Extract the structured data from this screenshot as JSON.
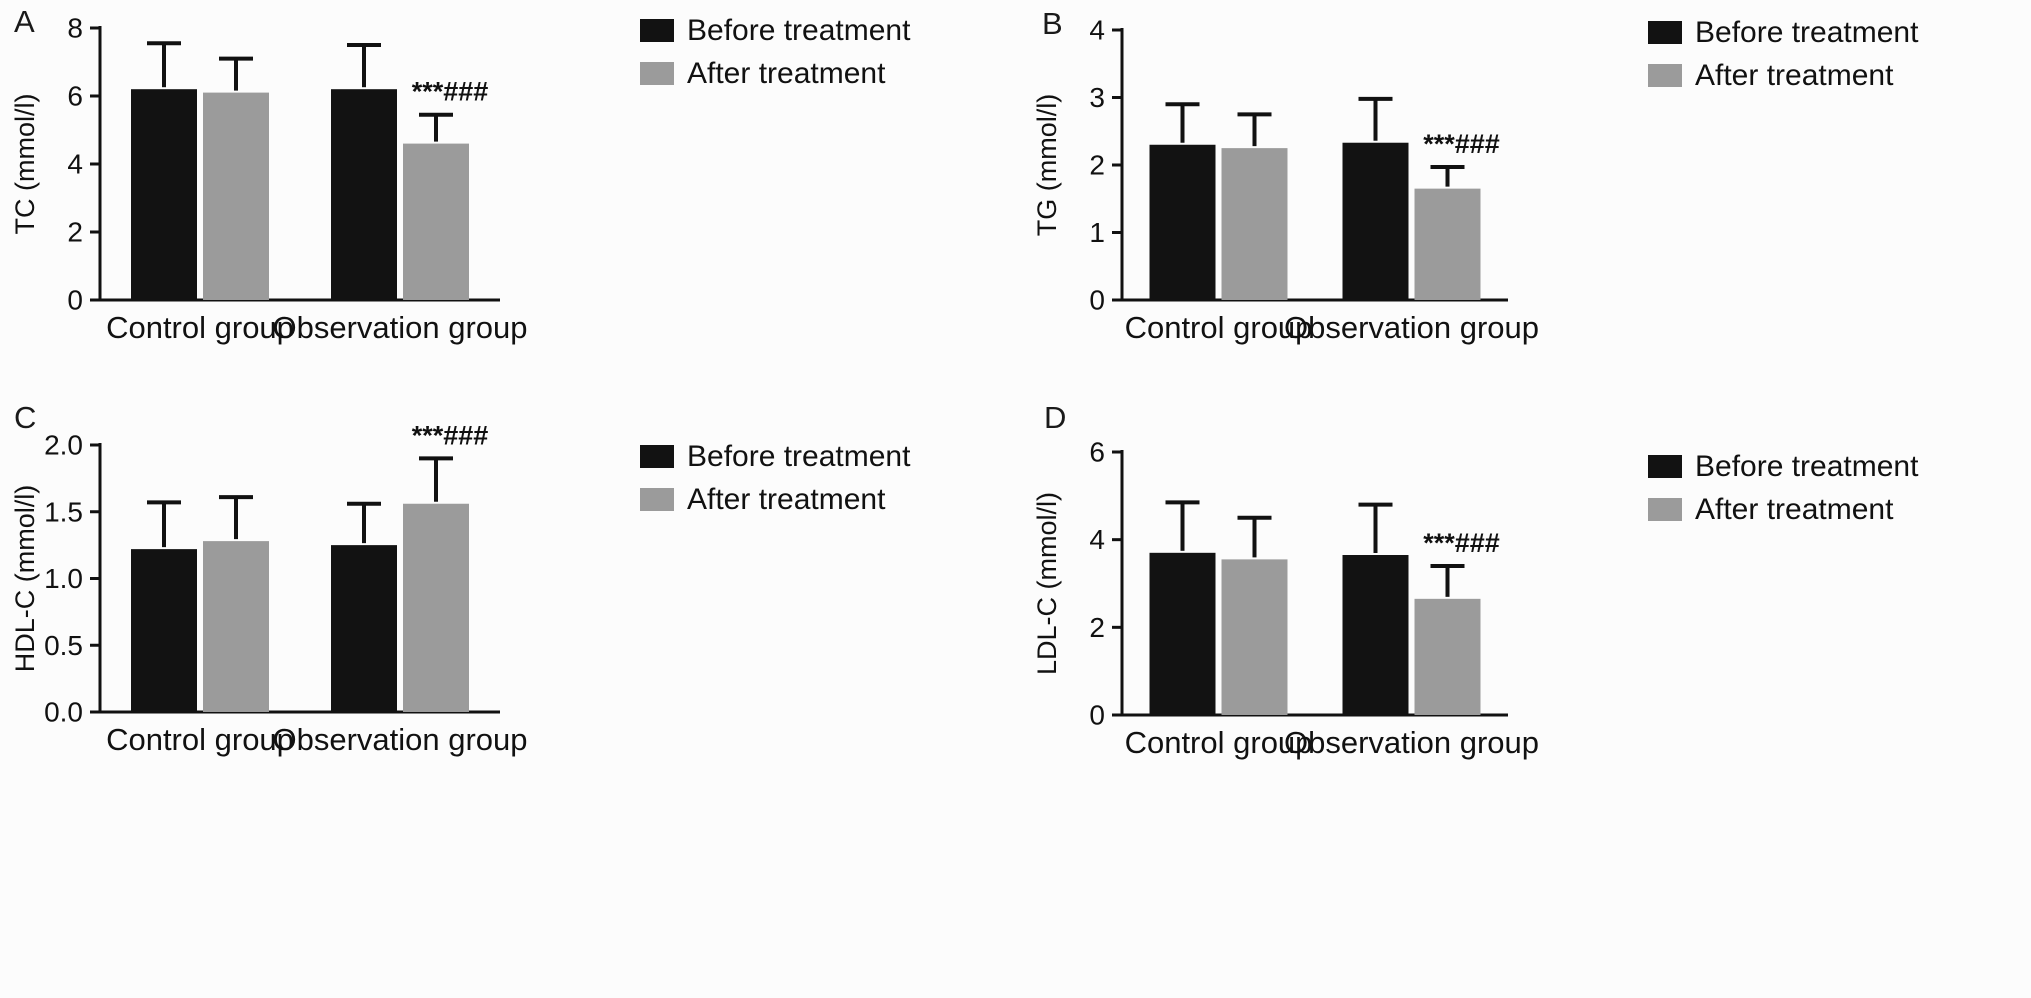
{
  "figure": {
    "background": "#fcfcfc"
  },
  "colors": {
    "before_series": "#121212",
    "after_series": "#9b9b9b",
    "axis": "#111111"
  },
  "chart_data": [
    {
      "type": "bar",
      "panel": "A",
      "ylabel": "TC (mmol/l)",
      "ylim": [
        0,
        8
      ],
      "ytick_values": [
        0,
        2,
        4,
        6,
        8
      ],
      "ytick_labels": [
        "0",
        "2",
        "4",
        "6",
        "8"
      ],
      "categories": [
        "Control group",
        "Observation group"
      ],
      "series": [
        {
          "name": "Before treatment",
          "color": "#121212",
          "values": [
            6.2,
            6.2
          ],
          "errors": [
            1.35,
            1.3
          ]
        },
        {
          "name": "After treatment",
          "color": "#9b9b9b",
          "values": [
            6.1,
            4.6
          ],
          "errors": [
            1.0,
            0.85
          ]
        }
      ],
      "annotation": {
        "text": "***###",
        "group": 1,
        "series": 1
      },
      "legend_position": "top-right",
      "grid": false
    },
    {
      "type": "bar",
      "panel": "B",
      "ylabel": "TG (mmol/l)",
      "ylim": [
        0,
        4
      ],
      "ytick_values": [
        0,
        1,
        2,
        3,
        4
      ],
      "ytick_labels": [
        "0",
        "1",
        "2",
        "3",
        "4"
      ],
      "categories": [
        "Control group",
        "Observation group"
      ],
      "series": [
        {
          "name": "Before treatment",
          "color": "#121212",
          "values": [
            2.3,
            2.33
          ],
          "errors": [
            0.6,
            0.65
          ]
        },
        {
          "name": "After treatment",
          "color": "#9b9b9b",
          "values": [
            2.25,
            1.65
          ],
          "errors": [
            0.5,
            0.32
          ]
        }
      ],
      "annotation": {
        "text": "***###",
        "group": 1,
        "series": 1
      },
      "legend_position": "top-right",
      "grid": false
    },
    {
      "type": "bar",
      "panel": "C",
      "ylabel": "HDL-C (mmol/l)",
      "ylim": [
        0,
        2
      ],
      "ytick_values": [
        0,
        0.5,
        1,
        1.5,
        2
      ],
      "ytick_labels": [
        "0.0",
        "0.5",
        "1.0",
        "1.5",
        "2.0"
      ],
      "categories": [
        "Control group",
        "Observation group"
      ],
      "series": [
        {
          "name": "Before treatment",
          "color": "#121212",
          "values": [
            1.22,
            1.25
          ],
          "errors": [
            0.35,
            0.31
          ]
        },
        {
          "name": "After treatment",
          "color": "#9b9b9b",
          "values": [
            1.28,
            1.56
          ],
          "errors": [
            0.33,
            0.34
          ]
        }
      ],
      "annotation": {
        "text": "***###",
        "group": 1,
        "series": 1
      },
      "legend_position": "top-right",
      "grid": false
    },
    {
      "type": "bar",
      "panel": "D",
      "ylabel": "LDL-C (mmol/l)",
      "ylim": [
        0,
        6
      ],
      "ytick_values": [
        0,
        2,
        4,
        6
      ],
      "ytick_labels": [
        "0",
        "2",
        "4",
        "6"
      ],
      "categories": [
        "Control group",
        "Observation group"
      ],
      "series": [
        {
          "name": "Before treatment",
          "color": "#121212",
          "values": [
            3.7,
            3.65
          ],
          "errors": [
            1.15,
            1.15
          ]
        },
        {
          "name": "After treatment",
          "color": "#9b9b9b",
          "values": [
            3.55,
            2.65
          ],
          "errors": [
            0.95,
            0.75
          ]
        }
      ],
      "annotation": {
        "text": "***###",
        "group": 1,
        "series": 1
      },
      "legend_position": "top-right",
      "grid": false
    }
  ]
}
